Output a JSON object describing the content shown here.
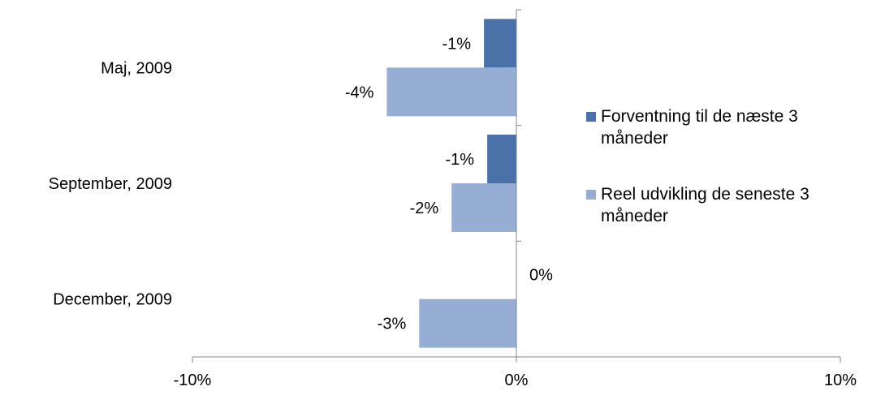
{
  "chart_data": {
    "type": "bar",
    "orientation": "horizontal",
    "categories": [
      "Maj, 2009",
      "September, 2009",
      "December, 2009"
    ],
    "series": [
      {
        "name": "Forventning til de næste 3 måneder",
        "color": "#4A72A8",
        "values": [
          -0.01,
          -0.009,
          0.0
        ],
        "labels": [
          "-1%",
          "-1%",
          "0%"
        ]
      },
      {
        "name": "Reel udvikling de seneste 3 måneder",
        "color": "#97AED4",
        "values": [
          -0.04,
          -0.02,
          -0.03
        ],
        "labels": [
          "-4%",
          "-2%",
          "-3%"
        ]
      }
    ],
    "xlim": [
      -0.1,
      0.1
    ],
    "xticks": [
      -0.1,
      0.0,
      0.1
    ],
    "xtick_labels": [
      "-10%",
      "0%",
      "10%"
    ],
    "legend_position": "right",
    "grid": false
  }
}
